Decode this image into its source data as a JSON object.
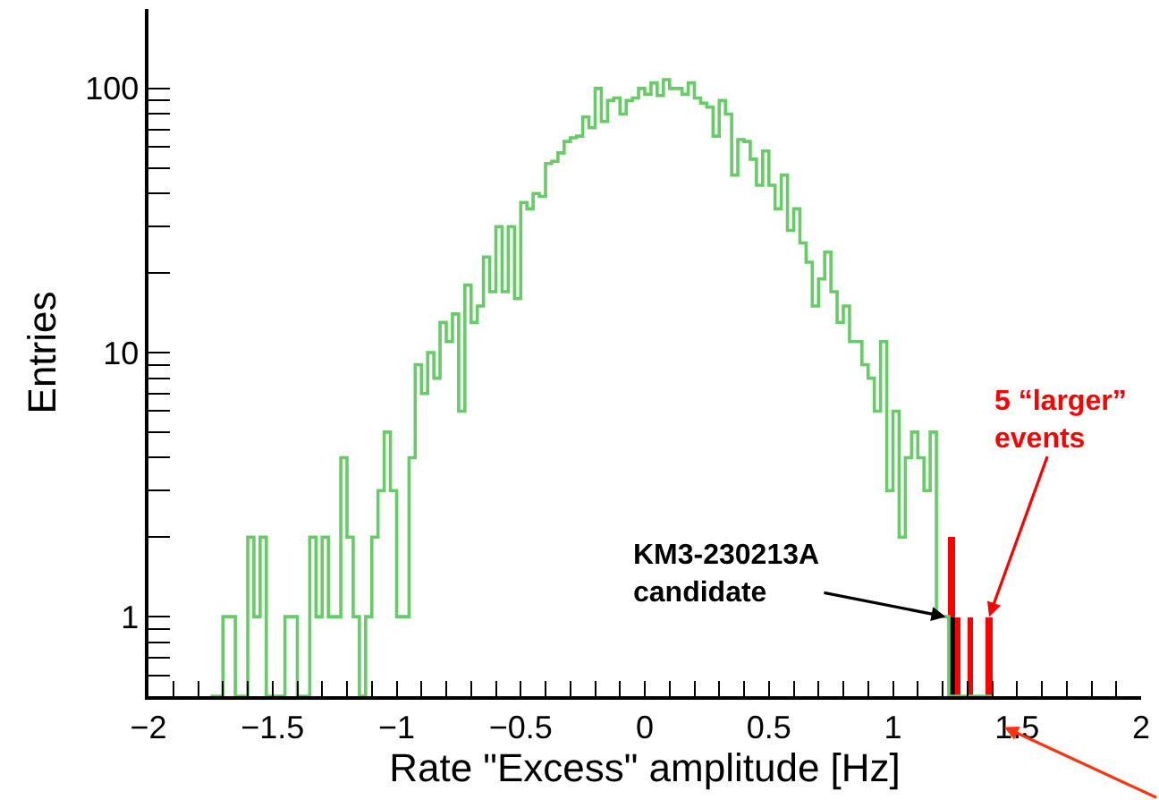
{
  "chart_data": {
    "type": "histogram",
    "xlabel": "Rate \"Excess\" amplitude [Hz]",
    "ylabel": "Entries",
    "bins": [
      -1.75,
      -1.725,
      -1.7,
      -1.675,
      -1.65,
      -1.625,
      -1.6,
      -1.575,
      -1.55,
      -1.525,
      -1.5,
      -1.475,
      -1.45,
      -1.425,
      -1.4,
      -1.375,
      -1.35,
      -1.325,
      -1.3,
      -1.275,
      -1.25,
      -1.225,
      -1.2,
      -1.175,
      -1.15,
      -1.125,
      -1.1,
      -1.075,
      -1.05,
      -1.025,
      -1.0,
      -0.975,
      -0.95,
      -0.925,
      -0.9,
      -0.875,
      -0.85,
      -0.825,
      -0.8,
      -0.775,
      -0.75,
      -0.725,
      -0.7,
      -0.675,
      -0.65,
      -0.625,
      -0.6,
      -0.575,
      -0.55,
      -0.525,
      -0.5,
      -0.475,
      -0.45,
      -0.425,
      -0.4,
      -0.375,
      -0.35,
      -0.325,
      -0.3,
      -0.275,
      -0.25,
      -0.225,
      -0.2,
      -0.175,
      -0.15,
      -0.125,
      -0.1,
      -0.075,
      -0.05,
      -0.025,
      0.0,
      0.025,
      0.05,
      0.075,
      0.1,
      0.125,
      0.15,
      0.175,
      0.2,
      0.225,
      0.25,
      0.275,
      0.3,
      0.325,
      0.35,
      0.375,
      0.4,
      0.425,
      0.45,
      0.475,
      0.5,
      0.525,
      0.55,
      0.575,
      0.6,
      0.625,
      0.65,
      0.675,
      0.7,
      0.725,
      0.75,
      0.775,
      0.8,
      0.825,
      0.85,
      0.875,
      0.9,
      0.925,
      0.95,
      0.975,
      1.0,
      1.025,
      1.05,
      1.075,
      1.1,
      1.125,
      1.15,
      1.175,
      1.2,
      1.225,
      1.25,
      1.275,
      1.3,
      1.325,
      1.35,
      1.375,
      1.4
    ],
    "series": [
      {
        "color": "#66cc66",
        "values": [
          null,
          null,
          1,
          1,
          null,
          null,
          2,
          1,
          2,
          null,
          null,
          null,
          1,
          1,
          null,
          null,
          2,
          1,
          2,
          1,
          1,
          4,
          2,
          1,
          null,
          1,
          2,
          3,
          5,
          3,
          1,
          1,
          4,
          9,
          7,
          10,
          8,
          13,
          11,
          14,
          6,
          18,
          13,
          15,
          23,
          17,
          30,
          17,
          30,
          16,
          37,
          35,
          40,
          39,
          52,
          53,
          57,
          63,
          65,
          66,
          78,
          71,
          100,
          75,
          90,
          92,
          80,
          90,
          92,
          100,
          95,
          105,
          94,
          108,
          100,
          100,
          95,
          105,
          92,
          88,
          85,
          66,
          90,
          80,
          47,
          64,
          63,
          54,
          43,
          58,
          43,
          35,
          47,
          29,
          35,
          26,
          22,
          15,
          19,
          24,
          17,
          13,
          15,
          11,
          11,
          9,
          8,
          6,
          11,
          3,
          6,
          2,
          4,
          5,
          4,
          3,
          5,
          1,
          1,
          null,
          null,
          null,
          null,
          null,
          null,
          null
        ]
      },
      {
        "color": "#ff0000",
        "values": [
          null,
          null,
          null,
          null,
          null,
          null,
          null,
          null,
          null,
          null,
          null,
          null,
          null,
          null,
          null,
          null,
          null,
          null,
          null,
          null,
          null,
          null,
          null,
          null,
          null,
          null,
          null,
          null,
          null,
          null,
          null,
          null,
          null,
          null,
          null,
          null,
          null,
          null,
          null,
          null,
          null,
          null,
          null,
          null,
          null,
          null,
          null,
          null,
          null,
          null,
          null,
          null,
          null,
          null,
          null,
          null,
          null,
          null,
          null,
          null,
          null,
          null,
          null,
          null,
          null,
          null,
          null,
          null,
          null,
          null,
          null,
          null,
          null,
          null,
          null,
          null,
          null,
          null,
          null,
          null,
          null,
          null,
          null,
          null,
          null,
          null,
          null,
          null,
          null,
          null,
          null,
          null,
          null,
          null,
          null,
          null,
          null,
          null,
          null,
          null,
          null,
          null,
          null,
          null,
          null,
          null,
          null,
          null,
          null,
          null,
          null,
          null,
          null,
          null,
          null,
          null,
          null,
          null,
          null,
          2,
          1,
          null,
          1,
          null,
          null,
          1
        ]
      },
      {
        "color": "#000000",
        "values": [
          null,
          null,
          null,
          null,
          null,
          null,
          null,
          null,
          null,
          null,
          null,
          null,
          null,
          null,
          null,
          null,
          null,
          null,
          null,
          null,
          null,
          null,
          null,
          null,
          null,
          null,
          null,
          null,
          null,
          null,
          null,
          null,
          null,
          null,
          null,
          null,
          null,
          null,
          null,
          null,
          null,
          null,
          null,
          null,
          null,
          null,
          null,
          null,
          null,
          null,
          null,
          null,
          null,
          null,
          null,
          null,
          null,
          null,
          null,
          null,
          null,
          null,
          null,
          null,
          null,
          null,
          null,
          null,
          null,
          null,
          null,
          null,
          null,
          null,
          null,
          null,
          null,
          null,
          null,
          null,
          null,
          null,
          null,
          null,
          null,
          null,
          null,
          null,
          null,
          null,
          null,
          null,
          null,
          null,
          null,
          null,
          null,
          null,
          null,
          null,
          null,
          null,
          null,
          null,
          null,
          null,
          null,
          null,
          null,
          null,
          null,
          null,
          null,
          null,
          null,
          null,
          null,
          null,
          null,
          1,
          null,
          null,
          null,
          null,
          null,
          null
        ]
      }
    ],
    "log": "y",
    "xlim": [
      -2,
      2
    ],
    "ylim": [
      0.5,
      200
    ],
    "xticks": [
      -2,
      {
        "value": -1.9,
        "label": null
      },
      {
        "value": -1.8,
        "label": null
      },
      {
        "value": -1.7,
        "label": null
      },
      {
        "value": -1.6,
        "label": null
      },
      -1.5,
      {
        "value": -1.4,
        "label": null
      },
      {
        "value": -1.3,
        "label": null
      },
      {
        "value": -1.2,
        "label": null
      },
      {
        "value": -1.1,
        "label": null
      },
      -1,
      {
        "value": -0.9,
        "label": null
      },
      {
        "value": -0.8,
        "label": null
      },
      {
        "value": -0.7,
        "label": null
      },
      {
        "value": -0.6,
        "label": null
      },
      -0.5,
      {
        "value": -0.4,
        "label": null
      },
      {
        "value": -0.3,
        "label": null
      },
      {
        "value": -0.2,
        "label": null
      },
      {
        "value": -0.1,
        "label": null
      },
      0,
      {
        "value": 0.1,
        "label": null
      },
      {
        "value": 0.2,
        "label": null
      },
      {
        "value": 0.3,
        "label": null
      },
      {
        "value": 0.4,
        "label": null
      },
      0.5,
      {
        "value": 0.6,
        "label": null
      },
      {
        "value": 0.7,
        "label": null
      },
      {
        "value": 0.8,
        "label": null
      },
      {
        "value": 0.9,
        "label": null
      },
      1,
      {
        "value": 1.1,
        "label": null
      },
      {
        "value": 1.2,
        "label": null
      },
      {
        "value": 1.3,
        "label": null
      },
      {
        "value": 1.4,
        "label": null
      },
      1.5,
      {
        "value": 1.6,
        "label": null
      },
      {
        "value": 1.7,
        "label": null
      },
      {
        "value": 1.8,
        "label": null
      },
      {
        "value": 1.9,
        "label": null
      },
      2
    ],
    "yticks": [
      {
        "value": 0.6,
        "label": null
      },
      {
        "value": 0.7,
        "label": null
      },
      {
        "value": 0.8,
        "label": null
      },
      {
        "value": 0.9,
        "label": null
      },
      1,
      {
        "value": 2,
        "label": null
      },
      {
        "value": 3,
        "label": null
      },
      {
        "value": 4,
        "label": null
      },
      {
        "value": 5,
        "label": null
      },
      {
        "value": 6,
        "label": null
      },
      {
        "value": 7,
        "label": null
      },
      {
        "value": 8,
        "label": null
      },
      {
        "value": 9,
        "label": null
      },
      10,
      {
        "value": 20,
        "label": null
      },
      {
        "value": 30,
        "label": null
      },
      {
        "value": 40,
        "label": null
      },
      {
        "value": 50,
        "label": null
      },
      {
        "value": 60,
        "label": null
      },
      {
        "value": 70,
        "label": null
      },
      {
        "value": 80,
        "label": null
      },
      {
        "value": 90,
        "label": null
      },
      100
    ],
    "annotations": [
      {
        "text": "KM3-230213A\ncandidate",
        "x": 1.2125,
        "y": 1
      },
      {
        "text": "5 “larger”\nevents",
        "x": 1.3875,
        "y": 1
      }
    ]
  }
}
